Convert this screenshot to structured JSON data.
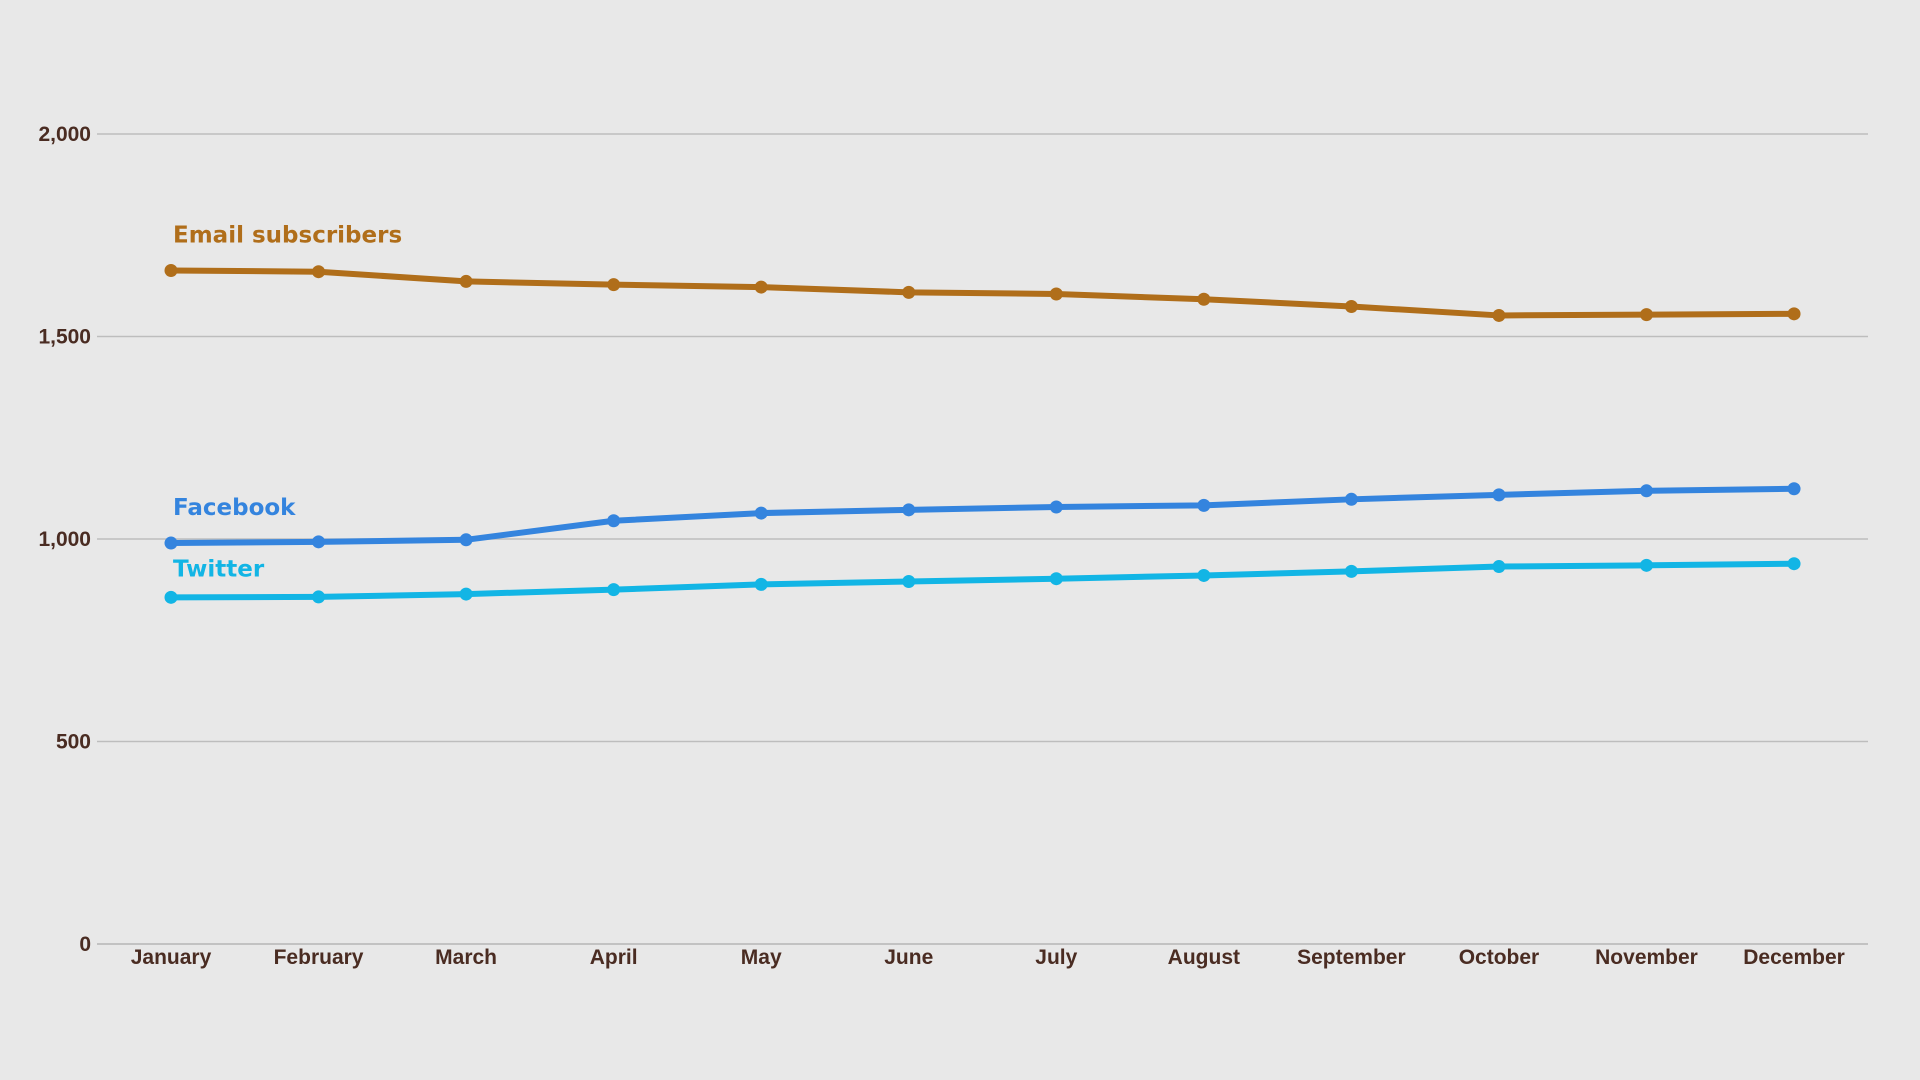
{
  "chart_data": {
    "type": "line",
    "categories": [
      "January",
      "February",
      "March",
      "April",
      "May",
      "June",
      "July",
      "August",
      "September",
      "October",
      "November",
      "December"
    ],
    "y_ticks": [
      "0",
      "500",
      "1,000",
      "1,500",
      "2,000"
    ],
    "ylim": [
      0,
      2000
    ],
    "grid": true,
    "legend": "inline labels at start of each line",
    "series": [
      {
        "name": "Email subscribers",
        "color": "#b06e1a",
        "values": [
          1663,
          1660,
          1636,
          1628,
          1622,
          1609,
          1605,
          1592,
          1574,
          1552,
          1554,
          1556
        ]
      },
      {
        "name": "Facebook",
        "color": "#3484de",
        "values": [
          990,
          993,
          998,
          1045,
          1064,
          1072,
          1079,
          1083,
          1098,
          1109,
          1119,
          1124
        ]
      },
      {
        "name": "Twitter",
        "color": "#12b5e5",
        "values": [
          856,
          857,
          864,
          875,
          888,
          895,
          902,
          910,
          920,
          932,
          935,
          939
        ]
      }
    ]
  }
}
